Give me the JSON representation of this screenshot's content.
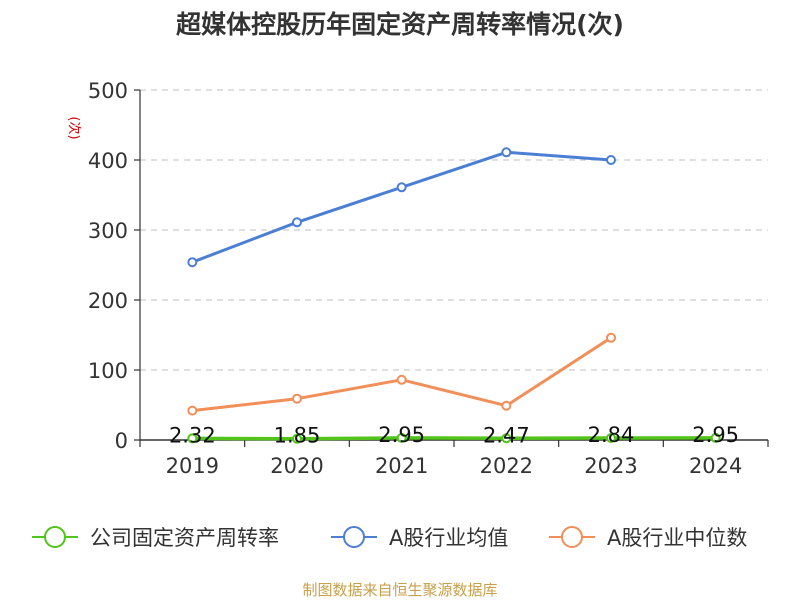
{
  "title": "超媒体控股历年固定资产周转率情况(次)",
  "source": "制图数据来自恒生聚源数据库",
  "chart_data": {
    "type": "line",
    "categories": [
      "2019",
      "2020",
      "2021",
      "2022",
      "2023",
      "2024"
    ],
    "ylabel": "(次)",
    "ylim": [
      0,
      500
    ],
    "yticks": [
      0,
      100,
      200,
      300,
      400,
      500
    ],
    "grid": true,
    "legend_position": "bottom",
    "series": [
      {
        "name": "公司固定资产周转率",
        "color": "#52c41a",
        "values": [
          2.32,
          1.85,
          2.95,
          2.47,
          2.84,
          2.95
        ],
        "labels": [
          "2.32",
          "1.85",
          "2.95",
          "2.47",
          "2.84",
          "2.95"
        ]
      },
      {
        "name": "A股行业均值",
        "color": "#4a7fd4",
        "values": [
          254,
          311,
          361,
          411,
          400,
          null
        ]
      },
      {
        "name": "A股行业中位数",
        "color": "#f28e58",
        "values": [
          42,
          59,
          86,
          49,
          146,
          null
        ]
      }
    ]
  }
}
